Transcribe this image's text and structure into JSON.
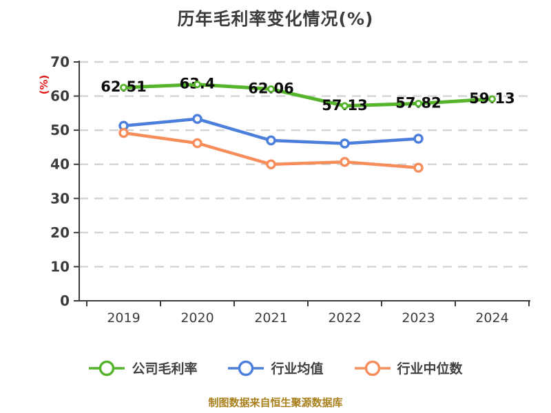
{
  "title": "历年毛利率变化情况(%)",
  "footer_note": "制图数据来自恒生聚源数据库",
  "colors": {
    "title_text": "#3c3c3c",
    "axis": "#3c3c3c",
    "gridline": "#d3d3d3",
    "y_unit_label": "#e61616",
    "data_label": "#0b0b0b",
    "footer": "#a97f1c",
    "company_series": "#56b42c",
    "industry_avg_series": "#4c7edc",
    "industry_median_series": "#f68d5a"
  },
  "chart_data": {
    "type": "line",
    "title": "历年毛利率变化情况(%)",
    "categories": [
      "2019",
      "2020",
      "2021",
      "2022",
      "2023",
      "2024"
    ],
    "series": [
      {
        "key": "company-gross-margin",
        "name": "公司毛利率",
        "color": "#56b42c",
        "values": [
          62.51,
          63.4,
          62.06,
          57.13,
          57.82,
          59.13
        ],
        "labels": [
          "62.51",
          "63.4",
          "62.06",
          "57.13",
          "57.82",
          "59.13"
        ]
      },
      {
        "key": "industry-average",
        "name": "行业均值",
        "color": "#4c7edc",
        "values": [
          51.3,
          53.3,
          47.0,
          46.1,
          47.5
        ]
      },
      {
        "key": "industry-median",
        "name": "行业中位数",
        "color": "#f68d5a",
        "values": [
          49.2,
          46.2,
          40.0,
          40.7,
          39.0
        ]
      }
    ],
    "xlabel": "",
    "ylabel": "(%)",
    "ylim": [
      0,
      70
    ],
    "y_ticks": [
      0,
      10,
      20,
      30,
      40,
      50,
      60,
      70
    ],
    "grid": "horizontal-dashed",
    "legend_position": "bottom"
  },
  "legend": {
    "items": [
      {
        "key": "company-gross-margin",
        "label": "公司毛利率",
        "color": "#56b42c"
      },
      {
        "key": "industry-average",
        "label": "行业均值",
        "color": "#4c7edc"
      },
      {
        "key": "industry-median",
        "label": "行业中位数",
        "color": "#f68d5a"
      }
    ]
  }
}
